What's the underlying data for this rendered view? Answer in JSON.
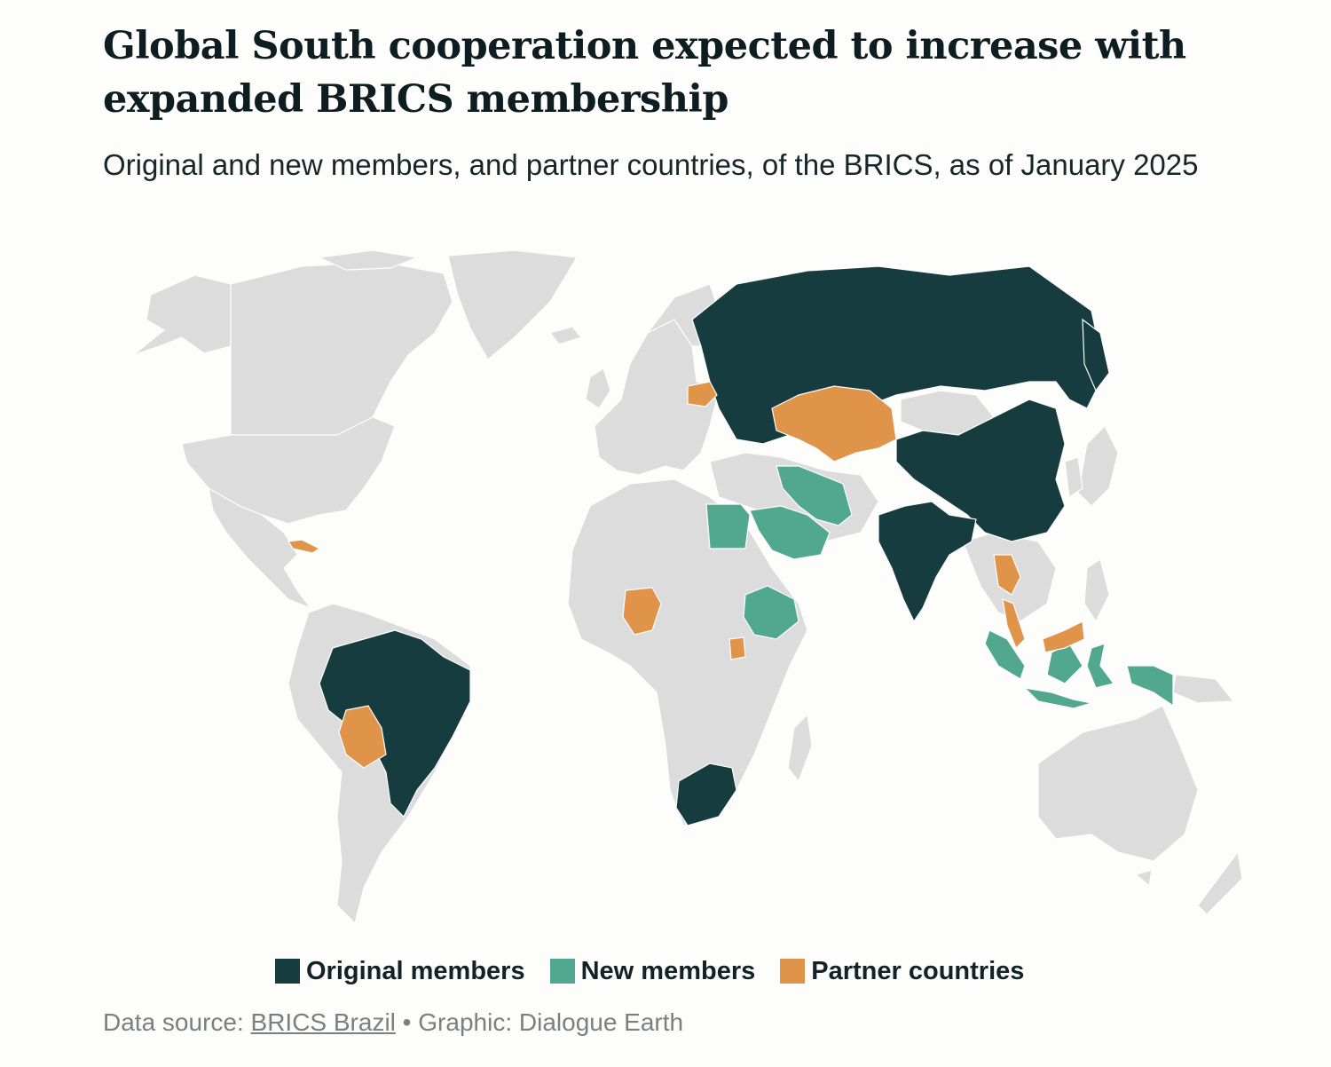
{
  "header": {
    "title": "Global South cooperation expected to increase with expanded BRICS membership",
    "subtitle": "Original and new members, and partner countries, of the BRICS, as of January 2025"
  },
  "colors": {
    "land": "#dcdcdc",
    "original": "#173c3f",
    "new": "#52a88e",
    "partner": "#e0944a",
    "background": "#fdfdfb"
  },
  "legend": {
    "items": [
      {
        "key": "original",
        "label": "Original members",
        "color": "#173c3f"
      },
      {
        "key": "new",
        "label": "New members",
        "color": "#52a88e"
      },
      {
        "key": "partner",
        "label": "Partner countries",
        "color": "#e0944a"
      }
    ]
  },
  "footer": {
    "source_prefix": "Data source: ",
    "source_link": "BRICS Brazil",
    "separator": " • ",
    "graphic_credit": "Graphic: Dialogue Earth"
  },
  "chart_data": {
    "type": "choropleth",
    "categories": [
      "Original members",
      "New members",
      "Partner countries"
    ],
    "countries": {
      "original": [
        "Brazil",
        "Russia",
        "India",
        "China",
        "South Africa"
      ],
      "new": [
        "Egypt",
        "Ethiopia",
        "Iran",
        "Saudi Arabia",
        "United Arab Emirates",
        "Indonesia"
      ],
      "partner": [
        "Belarus",
        "Bolivia",
        "Cuba",
        "Kazakhstan",
        "Malaysia",
        "Nigeria",
        "Thailand",
        "Uganda",
        "Uzbekistan"
      ]
    }
  }
}
